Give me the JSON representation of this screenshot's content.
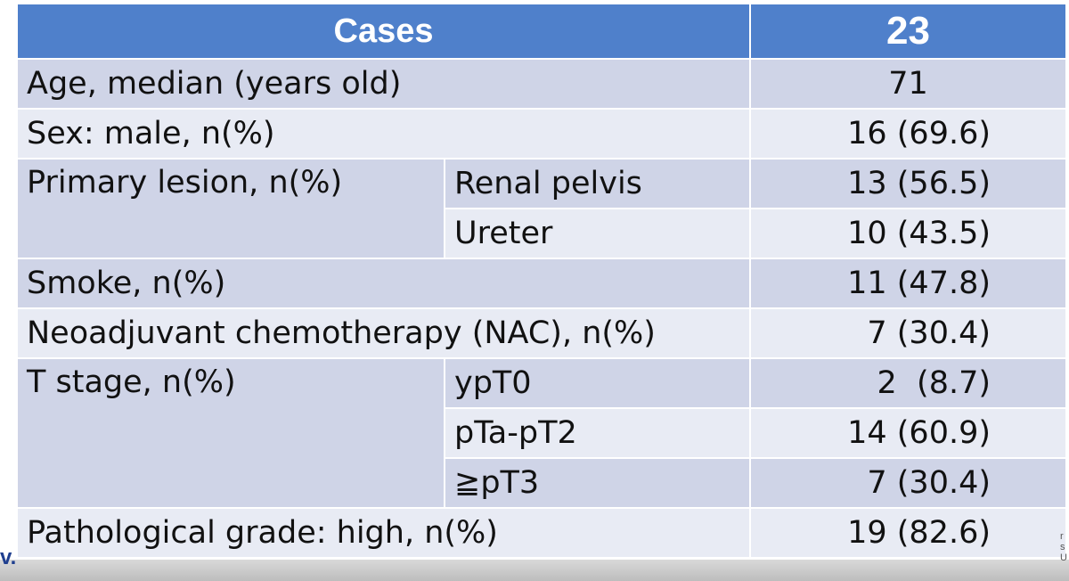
{
  "table": {
    "header": {
      "label": "Cases",
      "value": "23"
    },
    "age": {
      "label": "Age, median (years old)",
      "value": "71"
    },
    "sex": {
      "label": "Sex: male, n(%)",
      "value": "16 (69.6)"
    },
    "primary_lesion": {
      "label": "Primary lesion, n(%)",
      "rows": [
        {
          "sub": "Renal pelvis",
          "value": "13 (56.5)"
        },
        {
          "sub": "Ureter",
          "value": "10 (43.5)"
        }
      ]
    },
    "smoke": {
      "label": "Smoke, n(%)",
      "value": "11 (47.8)"
    },
    "nac": {
      "label": "Neoadjuvant chemotherapy (NAC), n(%)",
      "value": "7 (30.4)"
    },
    "t_stage": {
      "label": "T stage, n(%)",
      "rows": [
        {
          "sub": "ypT0",
          "value": "2  (8.7)"
        },
        {
          "sub": "pTa-pT2",
          "value": "14 (60.9)"
        },
        {
          "sub": "≧pT3",
          "value": "7 (30.4)"
        }
      ]
    },
    "grade": {
      "label": "Pathological grade: high, n(%)",
      "value": "19 (82.6)"
    }
  },
  "edges": {
    "left_fragment": "v.",
    "right_fragment": "r\ns\nU"
  },
  "colors": {
    "header_bg": "#4f80cb",
    "row_dark": "#cfd4e7",
    "row_light": "#e8ebf4"
  }
}
